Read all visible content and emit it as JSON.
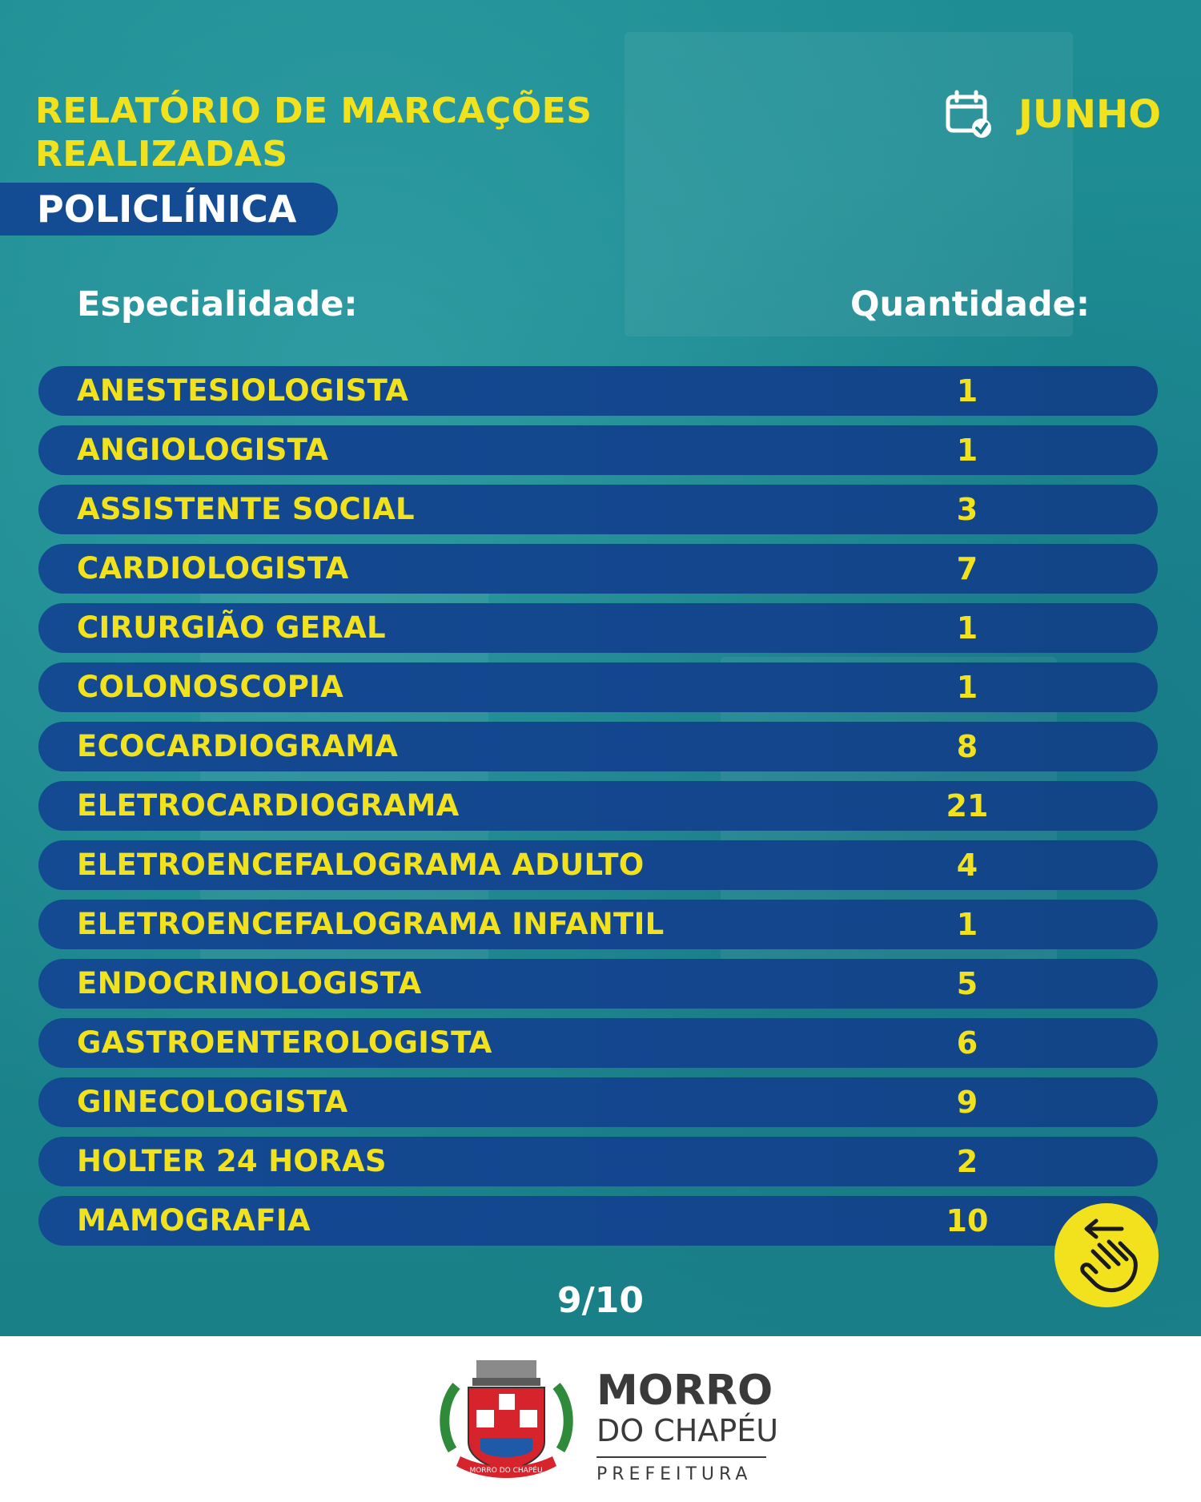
{
  "header": {
    "title_line1": "RELATÓRIO DE MARCAÇÕES",
    "title_line2": "REALIZADAS",
    "badge": "POLICLÍNICA",
    "month": "JUNHO"
  },
  "table": {
    "col_specialty": "Especialidade:",
    "col_quantity": "Quantidade:",
    "rows": [
      {
        "name": "ANESTESIOLOGISTA",
        "qty": "1"
      },
      {
        "name": "ANGIOLOGISTA",
        "qty": "1"
      },
      {
        "name": "ASSISTENTE SOCIAL",
        "qty": "3"
      },
      {
        "name": "CARDIOLOGISTA",
        "qty": "7"
      },
      {
        "name": "CIRURGIÃO GERAL",
        "qty": "1"
      },
      {
        "name": "COLONOSCOPIA",
        "qty": "1"
      },
      {
        "name": "ECOCARDIOGRAMA",
        "qty": "8"
      },
      {
        "name": "ELETROCARDIOGRAMA",
        "qty": "21"
      },
      {
        "name": "ELETROENCEFALOGRAMA ADULTO",
        "qty": "4"
      },
      {
        "name": "ELETROENCEFALOGRAMA INFANTIL",
        "qty": "1"
      },
      {
        "name": "ENDOCRINOLOGISTA",
        "qty": "5"
      },
      {
        "name": "GASTROENTEROLOGISTA",
        "qty": "6"
      },
      {
        "name": "GINECOLOGISTA",
        "qty": "9"
      },
      {
        "name": "HOLTER 24 HORAS",
        "qty": "2"
      },
      {
        "name": "MAMOGRAFIA",
        "qty": "10"
      }
    ]
  },
  "pagination": {
    "label": "9/10"
  },
  "icons": {
    "calendar": "calendar-check-icon",
    "swipe": "swipe-left-hand-icon",
    "crest": "coat-of-arms-icon"
  },
  "colors": {
    "accent_yellow": "#f2e21e",
    "row_blue": "#134a92",
    "background_teal": "#1e8e94"
  },
  "footer": {
    "crest_text": "MORRO DO CHAPÉU",
    "brand_line1": "MORRO",
    "brand_line2": "DO CHAPÉU",
    "brand_tag": "PREFEITURA"
  }
}
